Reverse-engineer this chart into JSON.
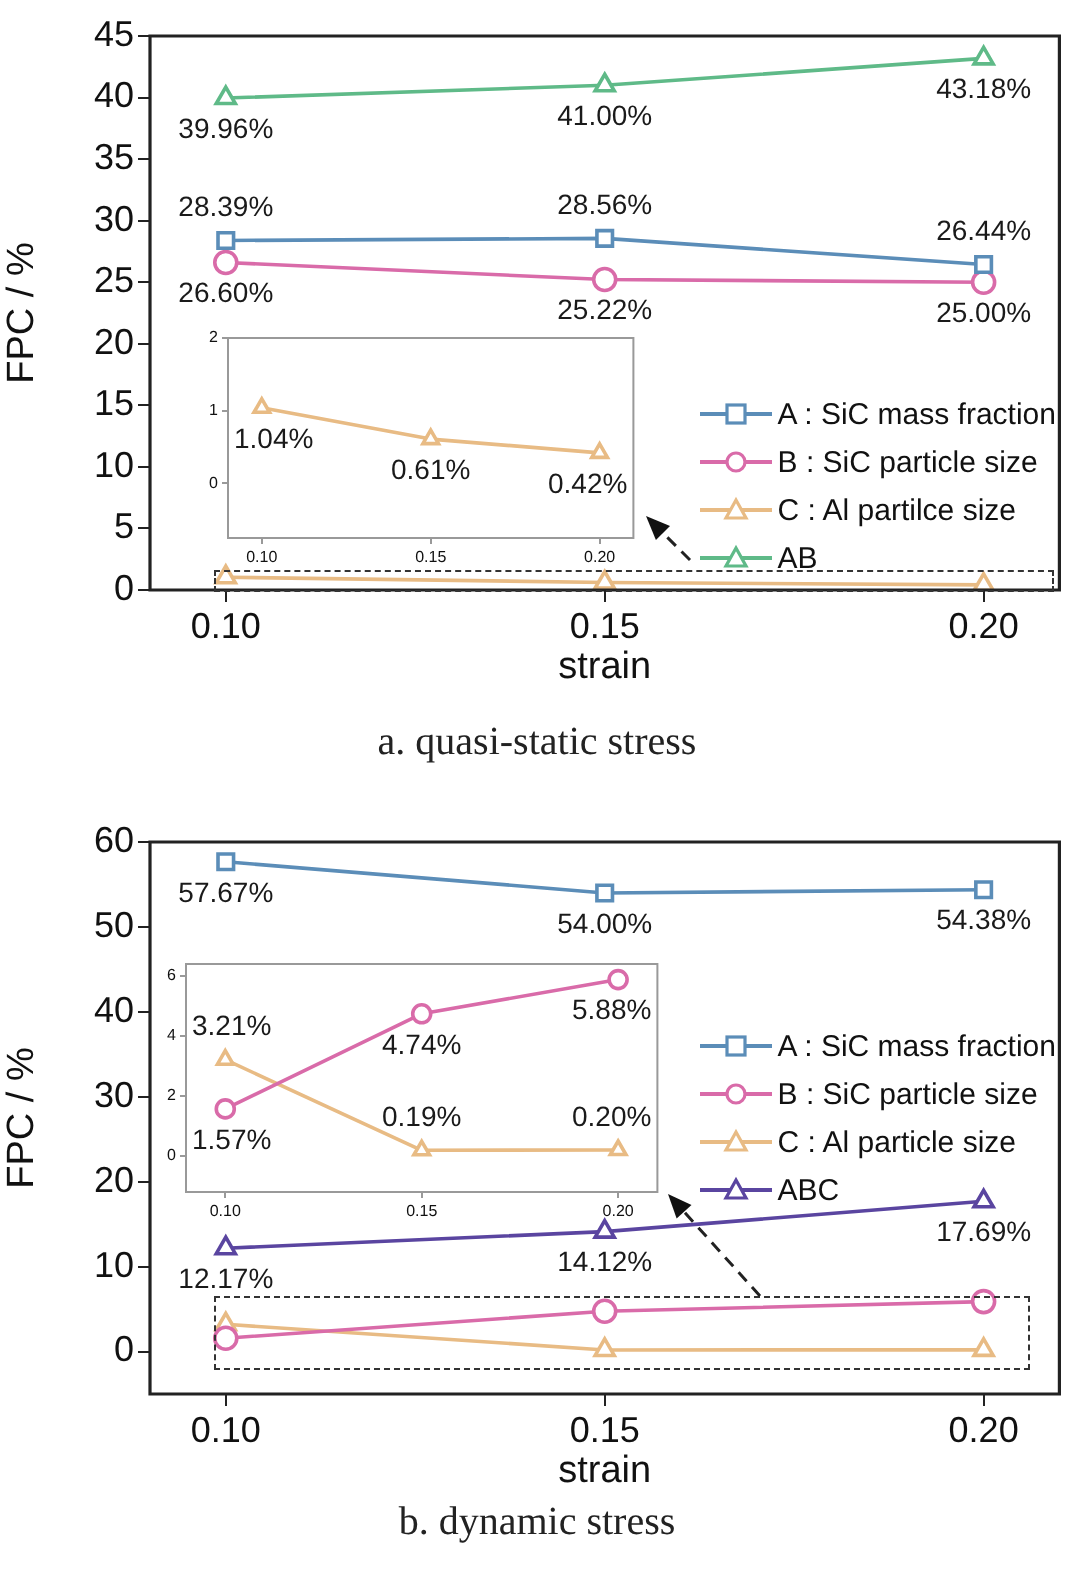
{
  "chart_data": [
    {
      "type": "line",
      "title": "a. quasi-static stress",
      "xlabel": "strain",
      "ylabel": "FPC / %",
      "x": [
        0.1,
        0.15,
        0.2
      ],
      "xlim": [
        0.09,
        0.21
      ],
      "xticks": [
        {
          "value": 0.1,
          "label": "0.10"
        },
        {
          "value": 0.15,
          "label": "0.15"
        },
        {
          "value": 0.2,
          "label": "0.20"
        }
      ],
      "ylim": [
        0,
        45
      ],
      "yticks": [
        0,
        5,
        10,
        15,
        20,
        25,
        30,
        35,
        40,
        45
      ],
      "legend": "bottom right",
      "series": [
        {
          "name": "A : SiC mass fraction",
          "color": "#5b8db8",
          "marker": "square",
          "values": [
            28.39,
            28.56,
            26.44
          ],
          "value_labels": [
            "28.39%",
            "28.56%",
            "26.44%"
          ]
        },
        {
          "name": "B : SiC particle size",
          "color": "#d96ba9",
          "marker": "circle",
          "values": [
            26.6,
            25.22,
            25.0
          ],
          "value_labels": [
            "26.60%",
            "25.22%",
            "25.00%"
          ]
        },
        {
          "name": "C : Al partilce size",
          "color": "#e8bb84",
          "marker": "triangle",
          "values": [
            1.04,
            0.61,
            0.42
          ]
        },
        {
          "name": "AB",
          "color": "#5fba88",
          "marker": "triangle",
          "values": [
            39.96,
            41.0,
            43.18
          ],
          "value_labels": [
            "39.96%",
            "41.00%",
            "43.18%"
          ]
        }
      ]
    },
    {
      "type": "line",
      "x": [
        0.1,
        0.15,
        0.2
      ],
      "xlim": [
        0.09,
        0.21
      ],
      "xticks": [
        {
          "value": 0.1,
          "label": "0.10"
        },
        {
          "value": 0.15,
          "label": "0.15"
        },
        {
          "value": 0.2,
          "label": "0.20"
        }
      ],
      "ylim": [
        -0.75,
        2
      ],
      "yticks": [
        0,
        1,
        2
      ],
      "series": [
        {
          "color": "#e8bb84",
          "marker": "triangle",
          "values": [
            1.04,
            0.61,
            0.42
          ],
          "value_labels": [
            "1.04%",
            "0.61%",
            "0.42%"
          ]
        }
      ]
    },
    {
      "type": "line",
      "title": "b. dynamic stress",
      "xlabel": "strain",
      "ylabel": "FPC / %",
      "x": [
        0.1,
        0.15,
        0.2
      ],
      "xlim": [
        0.09,
        0.21
      ],
      "xticks": [
        {
          "value": 0.1,
          "label": "0.10"
        },
        {
          "value": 0.15,
          "label": "0.15"
        },
        {
          "value": 0.2,
          "label": "0.20"
        }
      ],
      "ylim": [
        -5,
        60
      ],
      "yticks": [
        0,
        10,
        20,
        30,
        40,
        50,
        60
      ],
      "legend": "right",
      "series": [
        {
          "name": "A : SiC mass fraction",
          "color": "#5b8db8",
          "marker": "square",
          "values": [
            57.67,
            54.0,
            54.38
          ],
          "value_labels": [
            "57.67%",
            "54.00%",
            "54.38%"
          ]
        },
        {
          "name": "B : SiC particle size",
          "color": "#d96ba9",
          "marker": "circle",
          "values": [
            1.57,
            4.74,
            5.88
          ]
        },
        {
          "name": "C : Al particle size",
          "color": "#e8bb84",
          "marker": "triangle",
          "values": [
            3.21,
            0.19,
            0.2
          ]
        },
        {
          "name": "ABC",
          "color": "#5a45a0",
          "marker": "triangle",
          "values": [
            12.17,
            14.12,
            17.69
          ],
          "value_labels": [
            "12.17%",
            "14.12%",
            "17.69%"
          ]
        }
      ]
    },
    {
      "type": "line",
      "x": [
        0.1,
        0.15,
        0.2
      ],
      "xlim": [
        0.09,
        0.21
      ],
      "xticks": [
        {
          "value": 0.1,
          "label": "0.10"
        },
        {
          "value": 0.15,
          "label": "0.15"
        },
        {
          "value": 0.2,
          "label": "0.20"
        }
      ],
      "ylim": [
        -1.2,
        6.4
      ],
      "yticks": [
        0,
        2,
        4,
        6
      ],
      "series": [
        {
          "color": "#d96ba9",
          "marker": "circle",
          "values": [
            1.57,
            4.74,
            5.88
          ],
          "value_labels": [
            "1.57%",
            "4.74%",
            "5.88%"
          ]
        },
        {
          "color": "#e8bb84",
          "marker": "triangle",
          "values": [
            3.21,
            0.19,
            0.2
          ],
          "value_labels": [
            "3.21%",
            "0.19%",
            "0.20%"
          ]
        }
      ]
    }
  ]
}
